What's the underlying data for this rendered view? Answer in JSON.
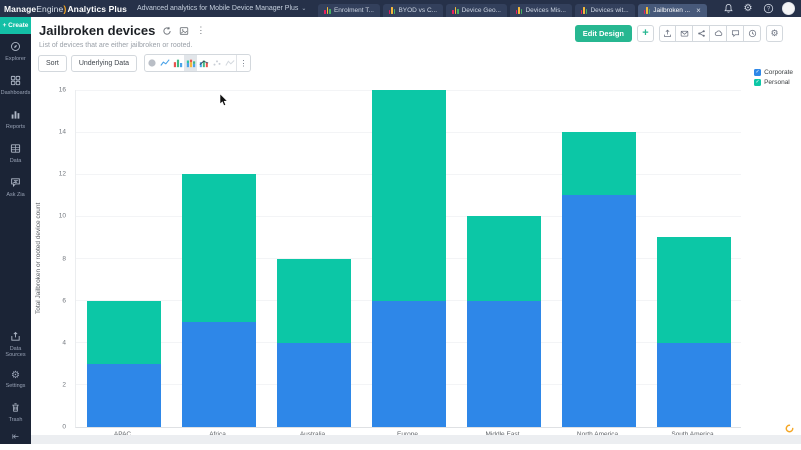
{
  "topbar": {
    "logo": {
      "part1": "Manage",
      "part2": "Engine",
      "product": "Analytics Plus"
    },
    "workspace_selector": "Advanced analytics for Mobile Device Manager Plus",
    "tabs": [
      {
        "label": "Enrolment T...",
        "active": false
      },
      {
        "label": "BYOD vs C...",
        "active": false
      },
      {
        "label": "Device Geo...",
        "active": false
      },
      {
        "label": "Devices Mis...",
        "active": false
      },
      {
        "label": "Devices wit...",
        "active": false
      },
      {
        "label": "Jailbroken ...",
        "active": true,
        "closable": true
      }
    ],
    "right_icons": [
      "notifications-icon",
      "settings-icon",
      "help-icon",
      "user-avatar"
    ]
  },
  "sidebar": {
    "create_label": "+ Create",
    "items_top": [
      {
        "label": "Explorer",
        "icon": "explorer-icon"
      },
      {
        "label": "Dashboards",
        "icon": "dashboards-icon"
      },
      {
        "label": "Reports",
        "icon": "reports-icon"
      },
      {
        "label": "Data",
        "icon": "data-icon"
      },
      {
        "label": "Ask Zia",
        "icon": "ask-zia-icon"
      }
    ],
    "items_bottom": [
      {
        "label": "Data Sources",
        "icon": "data-sources-icon"
      },
      {
        "label": "Settings",
        "icon": "settings-gear-icon"
      },
      {
        "label": "Trash",
        "icon": "trash-icon"
      }
    ]
  },
  "report": {
    "title": "Jailbroken devices",
    "subtitle": "List of devices that are either jailbroken or rooted.",
    "title_icons": [
      "refresh-icon",
      "export-image-icon",
      "more-vertical-icon"
    ],
    "toolbar": {
      "sort_label": "Sort",
      "underlying_data_label": "Underlying Data",
      "chart_type_icons": [
        {
          "name": "pie-chart-icon",
          "active": false
        },
        {
          "name": "line-chart-icon",
          "active": false
        },
        {
          "name": "bar-chart-icon",
          "active": false
        },
        {
          "name": "stacked-bar-chart-icon",
          "active": true
        },
        {
          "name": "combo-chart-icon",
          "active": false
        },
        {
          "name": "scatter-chart-icon",
          "active": false
        },
        {
          "name": "area-chart-icon",
          "active": false
        },
        {
          "name": "more-chart-options-icon",
          "active": false
        }
      ]
    },
    "actions": {
      "edit_design_label": "Edit Design",
      "add_label": "+",
      "action_icons": [
        "export-icon",
        "mail-icon",
        "share-icon",
        "publish-icon",
        "comment-icon",
        "history-icon"
      ],
      "settings_icon": "settings-gear-icon"
    }
  },
  "chart_data": {
    "type": "bar",
    "stacked": true,
    "title": "Jailbroken devices",
    "categories": [
      "APAC",
      "Africa",
      "Australia",
      "Europe",
      "Middle East",
      "North America",
      "South America"
    ],
    "series": [
      {
        "name": "Corporate",
        "color": "#2e87e8",
        "values": [
          3,
          5,
          4,
          6,
          6,
          11,
          4
        ]
      },
      {
        "name": "Personal",
        "color": "#0cc7a6",
        "values": [
          3,
          7,
          4,
          10,
          4,
          3,
          5
        ]
      }
    ],
    "totals": [
      6,
      12,
      8,
      16,
      10,
      14,
      9
    ],
    "xlabel": "",
    "ylabel": "Total Jailbroken or rooted device count",
    "ylim": [
      0,
      16
    ],
    "ytick_step": 2,
    "yticks": [
      0,
      2,
      4,
      6,
      8,
      10,
      12,
      14,
      16
    ],
    "grid": true,
    "legend_position": "top-right"
  }
}
